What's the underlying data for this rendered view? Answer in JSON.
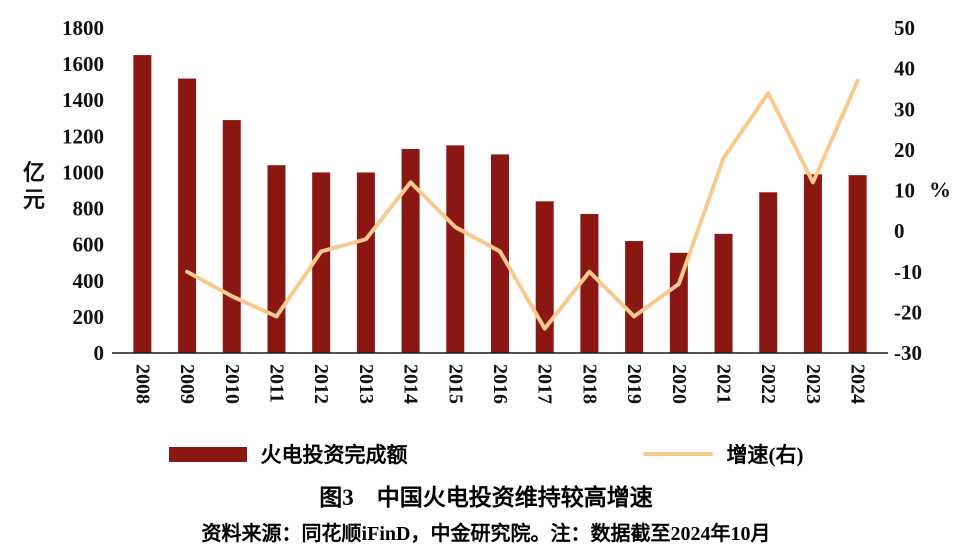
{
  "title": "图3　中国火电投资维持较高增速",
  "source_note": "资料来源：同花顺iFinD，中金研究院。注：数据截至2024年10月",
  "chart_data": {
    "type": "bar",
    "subtype": "bar+line combo",
    "categories": [
      "2008",
      "2009",
      "2010",
      "2011",
      "2012",
      "2013",
      "2014",
      "2015",
      "2016",
      "2017",
      "2018",
      "2019",
      "2020",
      "2021",
      "2022",
      "2023",
      "2024"
    ],
    "series": [
      {
        "name": "火电投资完成额",
        "type": "bar",
        "axis": "left",
        "color": "#8B1713",
        "values": [
          1650,
          1520,
          1290,
          1040,
          1000,
          1000,
          1130,
          1150,
          1100,
          840,
          770,
          620,
          555,
          660,
          890,
          990,
          985
        ]
      },
      {
        "name": "增速(右)",
        "type": "line",
        "axis": "right",
        "color": "#F8CA90",
        "values": [
          null,
          -10,
          -16,
          -21,
          -5,
          -2,
          12,
          1,
          -5,
          -24,
          -10,
          -21,
          -13,
          18,
          34,
          12,
          37
        ]
      }
    ],
    "left_axis": {
      "label": "亿元",
      "min": 0,
      "max": 1800,
      "step": 200
    },
    "right_axis": {
      "label": "%",
      "min": -30,
      "max": 50,
      "step": 10
    },
    "grid": false,
    "legend_position": "bottom",
    "x_tick_rotation": 90
  },
  "legend": {
    "bar_label": "火电投资完成额",
    "line_label": "增速(右)"
  }
}
